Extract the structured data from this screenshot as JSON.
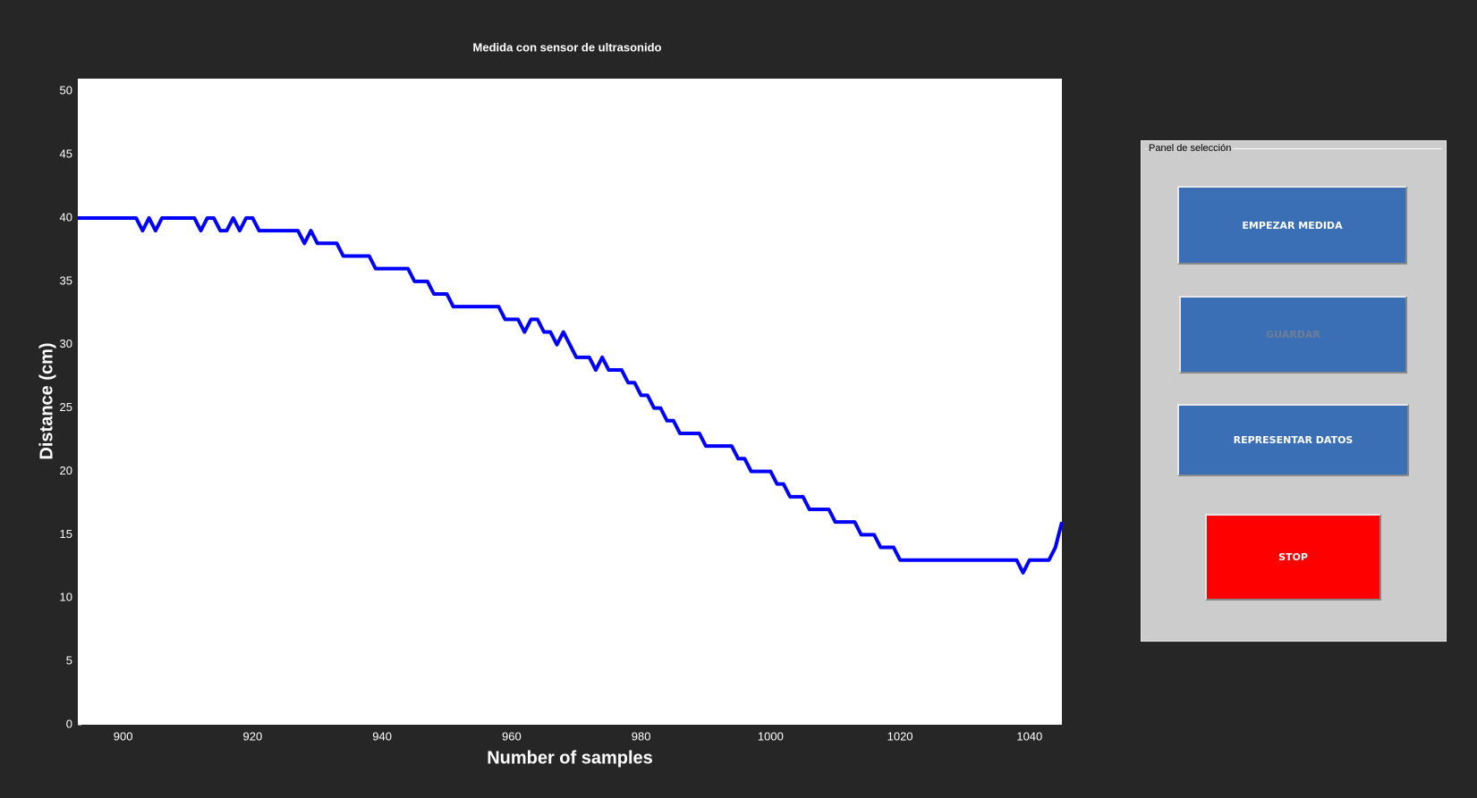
{
  "chart_data": {
    "type": "line",
    "title": "Medida con sensor de ultrasonido",
    "x_label": "Number of samples",
    "y_label": "Distance (cm)",
    "x": [
      893,
      894,
      895,
      896,
      897,
      898,
      899,
      900,
      901,
      902,
      903,
      904,
      905,
      906,
      907,
      908,
      909,
      910,
      911,
      912,
      913,
      914,
      915,
      916,
      917,
      918,
      919,
      920,
      921,
      922,
      923,
      924,
      925,
      926,
      927,
      928,
      929,
      930,
      931,
      932,
      933,
      934,
      935,
      936,
      937,
      938,
      939,
      940,
      941,
      942,
      943,
      944,
      945,
      946,
      947,
      948,
      949,
      950,
      951,
      952,
      953,
      954,
      955,
      956,
      957,
      958,
      959,
      960,
      961,
      962,
      963,
      964,
      965,
      966,
      967,
      968,
      969,
      970,
      971,
      972,
      973,
      974,
      975,
      976,
      977,
      978,
      979,
      980,
      981,
      982,
      983,
      984,
      985,
      986,
      987,
      988,
      989,
      990,
      991,
      992,
      993,
      994,
      995,
      996,
      997,
      998,
      999,
      1000,
      1001,
      1002,
      1003,
      1004,
      1005,
      1006,
      1007,
      1008,
      1009,
      1010,
      1011,
      1012,
      1013,
      1014,
      1015,
      1016,
      1017,
      1018,
      1019,
      1020,
      1021,
      1022,
      1023,
      1024,
      1025,
      1026,
      1027,
      1028,
      1029,
      1030,
      1031,
      1032,
      1033,
      1034,
      1035,
      1036,
      1037,
      1038,
      1039,
      1040,
      1041,
      1042,
      1043,
      1044,
      1045
    ],
    "series": [
      {
        "name": "Distance",
        "color": "#0000ff",
        "values": [
          40,
          40,
          40,
          40,
          40,
          40,
          40,
          40,
          40,
          40,
          39,
          40,
          39,
          40,
          40,
          40,
          40,
          40,
          40,
          39,
          40,
          40,
          39,
          39,
          40,
          39,
          40,
          40,
          39,
          39,
          39,
          39,
          39,
          39,
          39,
          38,
          39,
          38,
          38,
          38,
          38,
          37,
          37,
          37,
          37,
          37,
          36,
          36,
          36,
          36,
          36,
          36,
          35,
          35,
          35,
          34,
          34,
          34,
          33,
          33,
          33,
          33,
          33,
          33,
          33,
          33,
          32,
          32,
          32,
          31,
          32,
          32,
          31,
          31,
          30,
          31,
          30,
          29,
          29,
          29,
          28,
          29,
          28,
          28,
          28,
          27,
          27,
          26,
          26,
          25,
          25,
          24,
          24,
          23,
          23,
          23,
          23,
          22,
          22,
          22,
          22,
          22,
          21,
          21,
          20,
          20,
          20,
          20,
          19,
          19,
          18,
          18,
          18,
          17,
          17,
          17,
          17,
          16,
          16,
          16,
          16,
          15,
          15,
          15,
          14,
          14,
          14,
          13,
          13,
          13,
          13,
          13,
          13,
          13,
          13,
          13,
          13,
          13,
          13,
          13,
          13,
          13,
          13,
          13,
          13,
          13,
          12,
          13,
          13,
          13,
          13,
          14,
          16
        ]
      }
    ],
    "xlim": [
      893,
      1045
    ],
    "ylim": [
      0,
      51
    ],
    "xticks": [
      900,
      920,
      940,
      960,
      980,
      1000,
      1020,
      1040
    ],
    "yticks": [
      0,
      5,
      10,
      15,
      20,
      25,
      30,
      35,
      40,
      45,
      50
    ]
  },
  "panel": {
    "title": "Panel de selección",
    "buttons": [
      {
        "label": "EMPEZAR MEDIDA"
      },
      {
        "label": "GUARDAR"
      },
      {
        "label": "REPRESENTAR DATOS"
      },
      {
        "label": "STOP"
      }
    ]
  }
}
